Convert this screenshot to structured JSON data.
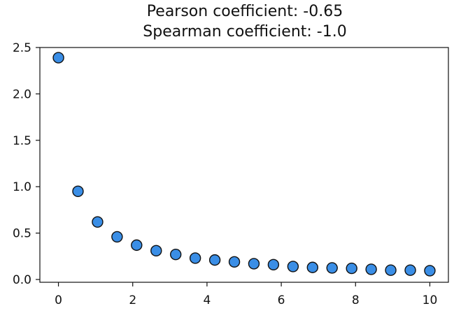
{
  "chart_data": {
    "type": "scatter",
    "title": "Pearson coefficient: -0.65",
    "subtitle": "Spearman coefficient: -1.0",
    "xlabel": "",
    "ylabel": "",
    "xlim": [
      -0.5,
      10.5
    ],
    "ylim": [
      -0.03,
      2.5
    ],
    "x_ticks": [
      0,
      2,
      4,
      6,
      8,
      10
    ],
    "y_ticks": [
      0.0,
      0.5,
      1.0,
      1.5,
      2.0,
      2.5
    ],
    "x_tick_labels": [
      "0",
      "2",
      "4",
      "6",
      "8",
      "10"
    ],
    "y_tick_labels": [
      "0.0",
      "0.5",
      "1.0",
      "1.5",
      "2.0",
      "2.5"
    ],
    "grid": false,
    "marker_color": "#3a8ee6",
    "marker_edge_color": "#111111",
    "series": [
      {
        "x": [
          0.0,
          0.526,
          1.053,
          1.579,
          2.105,
          2.632,
          3.158,
          3.684,
          4.211,
          4.737,
          5.263,
          5.789,
          6.316,
          6.842,
          7.368,
          7.895,
          8.421,
          8.947,
          9.474,
          10.0
        ],
        "y": [
          2.39,
          0.95,
          0.62,
          0.46,
          0.37,
          0.31,
          0.27,
          0.23,
          0.21,
          0.19,
          0.17,
          0.16,
          0.14,
          0.13,
          0.125,
          0.12,
          0.11,
          0.1,
          0.1,
          0.095
        ]
      }
    ]
  }
}
